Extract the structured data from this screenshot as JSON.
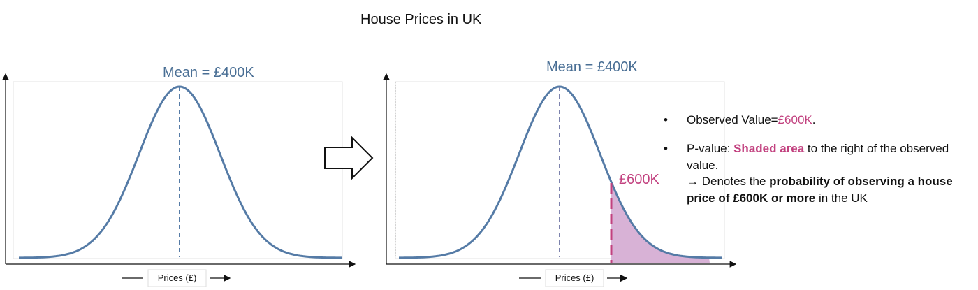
{
  "title": "House Prices in UK",
  "left_panel": {
    "mean_label": "Mean = £400K",
    "x_axis_label": "Prices (£)"
  },
  "right_panel": {
    "mean_label": "Mean  = £400K",
    "observed_label": "£600K",
    "x_axis_label": "Prices (£)"
  },
  "notes": {
    "bullet_glyph": "•",
    "observed": {
      "prefix": "Observed Value=",
      "value": "£600K",
      "suffix": "."
    },
    "pvalue": {
      "prefix": "P-value: ",
      "highlight": "Shaded area",
      "rest": " to the right of the observed value.",
      "arrow": "→",
      "denotes": " Denotes the ",
      "bold": "probability of observing a house price of £600K or more",
      "tail": " in the UK"
    }
  },
  "colors": {
    "curve": "#557ba6",
    "shade": "#d8b2d6",
    "accent": "#c2417f",
    "mean_text": "#4a6f95"
  },
  "icons": {
    "transition_arrow": "right-outline-arrow-icon",
    "axis_arrow": "right-arrow-icon"
  }
}
